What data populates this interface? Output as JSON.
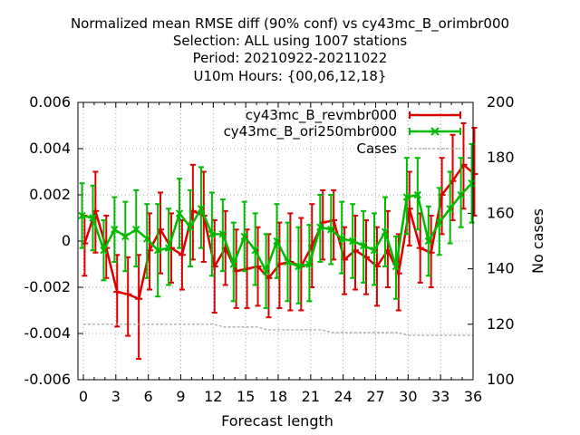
{
  "chart_data": {
    "type": "line",
    "title": [
      "Normalized mean RMSE diff (90% conf) vs cy43mc_B_orimbr000",
      "Selection: ALL using  1007 stations",
      "Period: 20210922-20211022",
      "U10m   Hours: {00,06,12,18}"
    ],
    "xlabel": "Forecast length",
    "ylabel": "",
    "y2label": "No cases",
    "xlim": [
      -0.5,
      36
    ],
    "ylim": [
      -0.006,
      0.006
    ],
    "y2lim": [
      100,
      200
    ],
    "xticks": [
      0,
      3,
      6,
      9,
      12,
      15,
      18,
      21,
      24,
      27,
      30,
      33,
      36
    ],
    "yticks": [
      -0.006,
      -0.004,
      -0.002,
      0,
      0.002,
      0.004,
      0.006
    ],
    "ytick_labels": [
      "-0.006",
      "-0.004",
      "-0.002",
      "0",
      "0.002",
      "0.004",
      "0.006"
    ],
    "y2ticks": [
      100,
      120,
      140,
      160,
      180,
      200
    ],
    "grid": true,
    "legend_position": "top-right",
    "x": [
      0,
      1,
      2,
      3,
      4,
      5,
      6,
      7,
      8,
      9,
      10,
      11,
      12,
      13,
      14,
      15,
      16,
      17,
      18,
      19,
      20,
      21,
      22,
      23,
      24,
      25,
      26,
      27,
      28,
      29,
      30,
      31,
      32,
      33,
      34,
      35,
      36
    ],
    "series": [
      {
        "name": "cy43mc_B_revmbr000",
        "color": "#dd0000",
        "values": [
          -0.0001,
          0.0013,
          -0.0003,
          -0.0022,
          -0.0023,
          -0.0025,
          -0.0004,
          0.0005,
          -0.0003,
          -0.0006,
          0.0013,
          0.0011,
          -0.0011,
          -0.0003,
          -0.0013,
          -0.0012,
          -0.0011,
          -0.0016,
          -0.001,
          -0.0009,
          -0.0011,
          -0.0002,
          0.0008,
          0.0009,
          -0.0008,
          -0.0004,
          -0.0007,
          -0.0011,
          -0.0004,
          -0.0014,
          0.0014,
          -0.0003,
          -0.0005,
          0.002,
          0.0026,
          0.0033,
          0.0029
        ],
        "err_low": [
          -0.0015,
          -0.0005,
          -0.0016,
          -0.0037,
          -0.0041,
          -0.0051,
          -0.0021,
          -0.0014,
          -0.0018,
          -0.0021,
          -0.0008,
          -0.0009,
          -0.0031,
          -0.0019,
          -0.0029,
          -0.0029,
          -0.0028,
          -0.0033,
          -0.0029,
          -0.003,
          -0.003,
          -0.002,
          -0.0008,
          -0.0008,
          -0.0023,
          -0.0021,
          -0.0023,
          -0.0028,
          -0.002,
          -0.003,
          -0.0002,
          -0.0018,
          -0.002,
          0.0003,
          0.0009,
          0.0014,
          0.0011
        ],
        "err_high": [
          0.0011,
          0.003,
          0.0011,
          -0.0006,
          -0.0007,
          -0.0006,
          0.0012,
          0.0021,
          0.0012,
          0.0009,
          0.0033,
          0.003,
          0.0009,
          0.0013,
          0.0005,
          0.0005,
          0.0006,
          0.0003,
          0.0008,
          0.0012,
          0.001,
          0.0016,
          0.0022,
          0.0022,
          0.0006,
          0.0011,
          0.0009,
          0.0006,
          0.0013,
          0.0003,
          0.003,
          0.0012,
          0.0011,
          0.0036,
          0.0046,
          0.0051,
          0.0049
        ]
      },
      {
        "name": "cy43mc_B_ori250mbr000",
        "color": "#00bb00",
        "values": [
          0.0011,
          0.001,
          -0.0004,
          0.0005,
          0.0002,
          0.0005,
          0.0001,
          -0.0004,
          -0.0003,
          0.0012,
          0.0006,
          0.0014,
          0.0003,
          0.0003,
          -0.001,
          0.0002,
          -0.0004,
          -0.0013,
          0.0,
          -0.0009,
          -0.0011,
          -0.001,
          0.0006,
          0.0005,
          0.0001,
          0.0,
          -0.0002,
          -0.0004,
          0.0004,
          -0.0011,
          0.0019,
          0.002,
          0.0,
          0.0008,
          0.0014,
          0.002,
          0.0025
        ],
        "err_low": [
          -0.0003,
          -0.0004,
          -0.0017,
          -0.0009,
          -0.0013,
          -0.0011,
          -0.0016,
          -0.0024,
          -0.0019,
          -0.0003,
          -0.0011,
          -0.0003,
          -0.0015,
          -0.0013,
          -0.0026,
          -0.0013,
          -0.0019,
          -0.0029,
          -0.0016,
          -0.0026,
          -0.0027,
          -0.0026,
          -0.0009,
          -0.001,
          -0.0014,
          -0.0016,
          -0.0018,
          -0.0019,
          -0.0011,
          -0.0025,
          0.0003,
          0.0005,
          -0.0015,
          -0.0006,
          -0.0001,
          0.0006,
          0.0008
        ],
        "err_high": [
          0.0025,
          0.0024,
          0.0009,
          0.0019,
          0.0017,
          0.0022,
          0.0016,
          0.0016,
          0.0014,
          0.0027,
          0.0022,
          0.0032,
          0.0021,
          0.0018,
          0.0008,
          0.0017,
          0.0012,
          0.0003,
          0.0016,
          0.0008,
          0.0006,
          0.0007,
          0.002,
          0.002,
          0.0017,
          0.0016,
          0.0013,
          0.0012,
          0.0019,
          0.0002,
          0.0036,
          0.0036,
          0.0015,
          0.0023,
          0.003,
          0.0036,
          0.0042
        ]
      },
      {
        "name": "Cases",
        "color": "#a0a0a0",
        "axis": "right",
        "values": [
          120,
          120,
          120,
          120,
          120,
          120,
          120,
          120,
          120,
          120,
          120,
          120,
          120,
          119,
          119,
          119,
          119,
          118,
          118,
          118,
          118,
          118,
          118,
          117,
          117,
          117,
          117,
          117,
          117,
          117,
          116,
          116,
          116,
          116,
          116,
          116,
          116
        ]
      }
    ]
  }
}
